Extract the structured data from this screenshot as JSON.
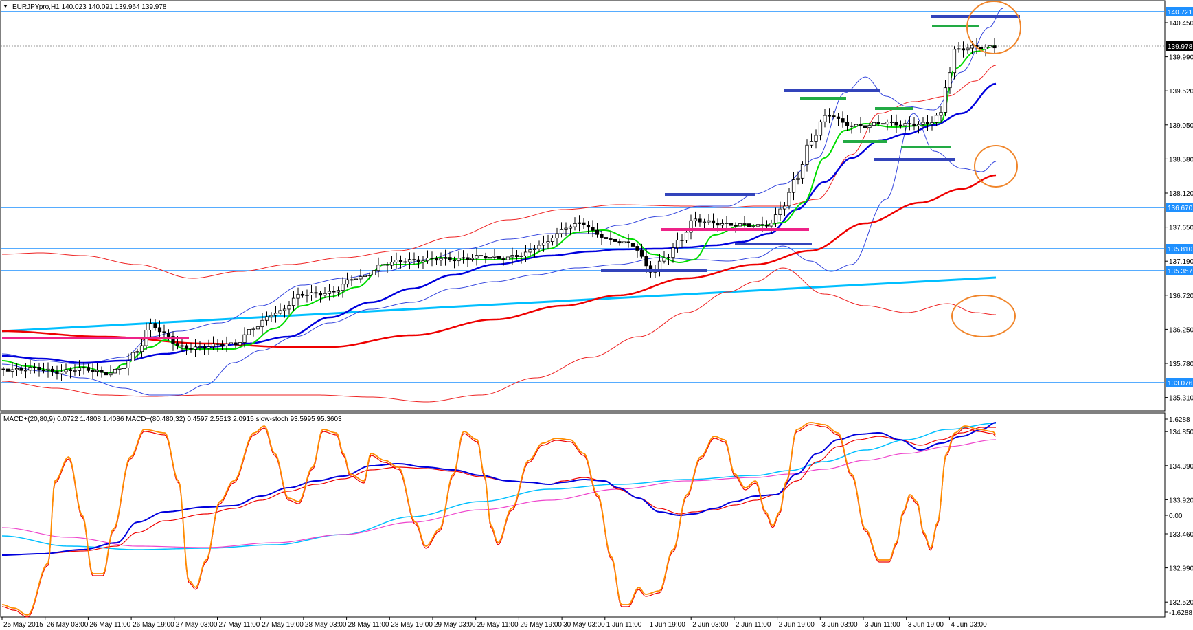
{
  "window": {
    "symbol_header": "EURJPYpro,H1  140.023 140.091 139.964 139.978"
  },
  "price_panel": {
    "axis_labels": [
      "140.450",
      "139.990",
      "139.520",
      "139.050",
      "138.580",
      "138.120",
      "137.650",
      "137.190",
      "136.720",
      "136.250",
      "135.780",
      "135.310",
      "134.850",
      "134.390",
      "133.920",
      "133.460",
      "132.990",
      "132.520"
    ],
    "level_labels": [
      {
        "text": "140.721",
        "color": "#1e90ff"
      },
      {
        "text": "139.978",
        "color": "#000000"
      },
      {
        "text": "136.670",
        "color": "#1e90ff"
      },
      {
        "text": "135.810",
        "color": "#1e90ff"
      },
      {
        "text": "135.357",
        "color": "#1e90ff"
      },
      {
        "text": "133.076",
        "color": "#1e90ff"
      }
    ]
  },
  "indicator_panel": {
    "header": "MACD+(20,80,9) 0.0722 1.4808 1.4086  MACD+(80,480,32) 0.4597 2.5513 2.0915  slow-stoch 93.5995 95.3603",
    "axis_labels": [
      "1.6288",
      "0.00",
      "-1.6288"
    ]
  },
  "time_axis": {
    "labels": [
      "25 May 2015",
      "26 May 03:00",
      "26 May 11:00",
      "26 May 19:00",
      "27 May 03:00",
      "27 May 11:00",
      "27 May 19:00",
      "28 May 03:00",
      "28 May 11:00",
      "28 May 19:00",
      "29 May 03:00",
      "29 May 11:00",
      "29 May 19:00",
      "30 May 03:00",
      "1 Jun 11:00",
      "1 Jun 19:00",
      "2 Jun 03:00",
      "2 Jun 11:00",
      "2 Jun 19:00",
      "3 Jun 03:00",
      "3 Jun 11:00",
      "3 Jun 19:00",
      "4 Jun 03:00"
    ]
  },
  "colors": {
    "support_resistance_line": "#1e90ff",
    "trend_line": "#00bfff",
    "ma_fast": "#00dd00",
    "ma_mid": "#0000dd",
    "ma_slow": "#ee0000",
    "bands_blue": "#3344dd",
    "bands_red": "#ee2222",
    "pivot_blue": "#3344bb",
    "pivot_green": "#22aa44",
    "pivot_magenta": "#ee2288",
    "highlight_circle": "#f0852a",
    "stoch": "#ff8c00"
  },
  "chart_data": {
    "type": "candlestick",
    "instrument": "EURJPYpro",
    "timeframe": "H1",
    "ohlc_last": {
      "open": 140.023,
      "high": 140.091,
      "low": 139.964,
      "close": 139.978
    },
    "horizontal_levels": [
      140.721,
      136.67,
      135.81,
      135.357,
      133.076
    ],
    "current_price": 139.978
  }
}
